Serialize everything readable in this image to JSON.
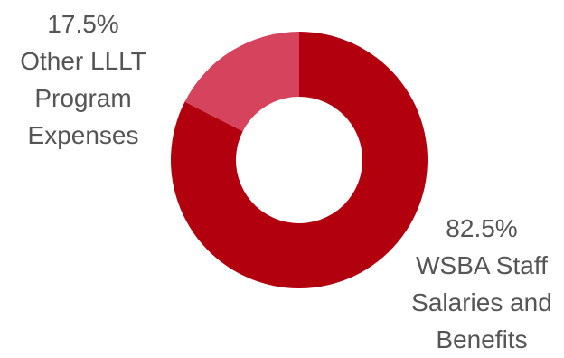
{
  "chart_data": {
    "type": "pie",
    "donut": true,
    "start": "top",
    "direction": "clockwise",
    "slices": [
      {
        "value": 82.5,
        "percent_label": "82.5%",
        "label_lines": [
          "WSBA Staff",
          "Salaries and",
          "Benefits"
        ],
        "color": "#B3000F"
      },
      {
        "value": 17.5,
        "percent_label": "17.5%",
        "label_lines": [
          "Other LLLT",
          "Program",
          "Expenses"
        ],
        "color": "#D6435D"
      }
    ],
    "legend": "none"
  },
  "colors": {
    "label_text": "#555555",
    "background": "#FFFFFF"
  }
}
